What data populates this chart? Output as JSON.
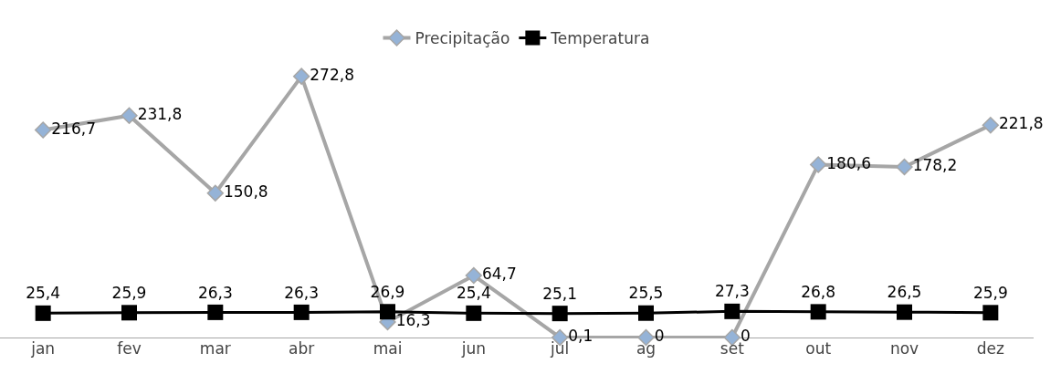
{
  "chart_data": {
    "type": "line",
    "categories": [
      "jan",
      "fev",
      "mar",
      "abr",
      "mai",
      "jun",
      "jul",
      "ag",
      "set",
      "out",
      "nov",
      "dez"
    ],
    "series": [
      {
        "name": "Precipitação",
        "color": "#a6a6a6",
        "marker": "diamond",
        "values": [
          216.7,
          231.8,
          150.8,
          272.8,
          16.3,
          64.7,
          0.1,
          0,
          0,
          180.6,
          178.2,
          221.8
        ],
        "value_labels": [
          "216,7",
          "231,8",
          "150,8",
          "272,8",
          "16,3",
          "64,7",
          "0,1",
          "0",
          "0",
          "180,6",
          "178,2",
          "221,8"
        ]
      },
      {
        "name": "Temperatura",
        "color": "#000000",
        "marker": "square",
        "values": [
          25.4,
          25.9,
          26.3,
          26.3,
          26.9,
          25.4,
          25.1,
          25.5,
          27.3,
          26.8,
          26.5,
          25.9
        ],
        "value_labels": [
          "25,4",
          "25,9",
          "26,3",
          "26,3",
          "26,9",
          "25,4",
          "25,1",
          "25,5",
          "27,3",
          "26,8",
          "26,5",
          "25,9"
        ]
      }
    ],
    "tick_labels": "x",
    "grid": false,
    "legend": "top"
  }
}
